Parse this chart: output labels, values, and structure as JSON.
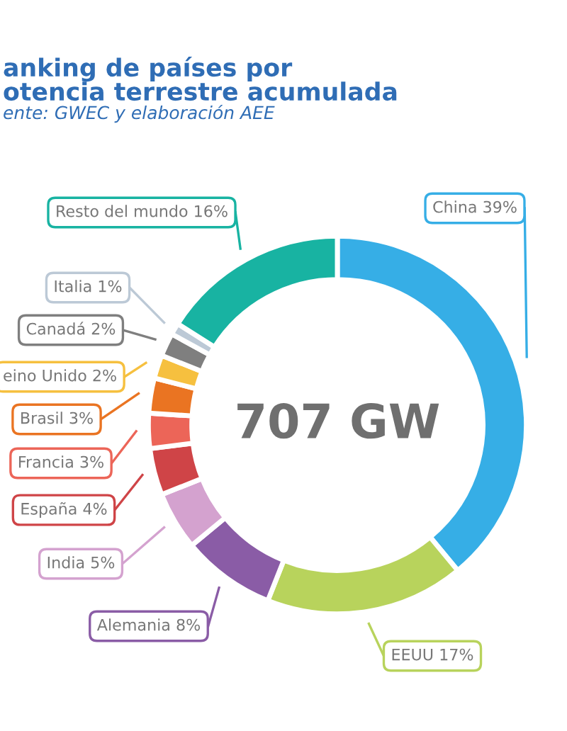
{
  "chart_data": {
    "type": "donut",
    "title": "anking de países por\notencia terrestre acumulada",
    "subtitle": "ente: GWEC y elaboración AEE",
    "annotations": [
      "707 GW"
    ],
    "categories": [
      "China",
      "EEUU",
      "Alemania",
      "India",
      "España",
      "Francia",
      "Brasil",
      "eino Unido",
      "Canadá",
      "Italia",
      "Resto del mundo"
    ],
    "values": [
      39,
      17,
      8,
      5,
      4,
      3,
      3,
      2,
      2,
      1,
      16
    ],
    "value_labels": [
      "39%",
      "17%",
      "8%",
      "5%",
      "4%",
      "3%",
      "3%",
      "2%",
      "2%",
      "1%",
      "16%"
    ],
    "colors": [
      "#36aee6",
      "#b8d35c",
      "#8a5ca6",
      "#d4a2cf",
      "#cf4447",
      "#ec6558",
      "#ea7422",
      "#f6c03f",
      "#7f7f7f",
      "#bcc9d6",
      "#18b3a2"
    ],
    "legend": false
  }
}
